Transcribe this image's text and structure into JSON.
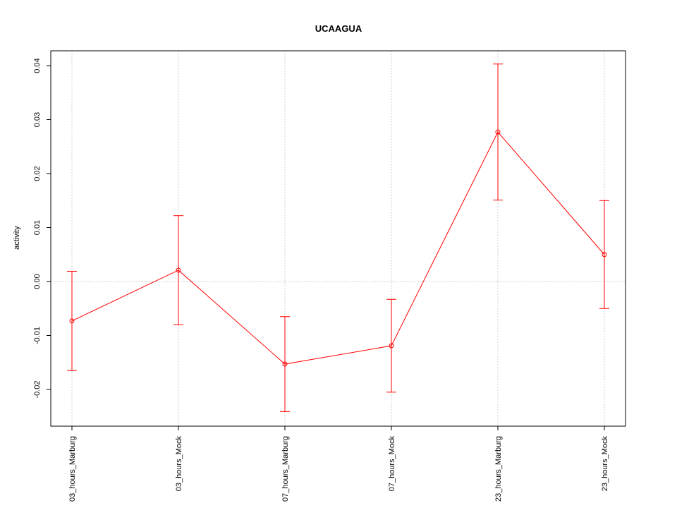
{
  "chart_data": {
    "type": "line",
    "title": "UCAAGUA",
    "y_label": "activity",
    "categories": [
      "03_hours_Marburg",
      "03_hours_Mock",
      "07_hours_Marburg",
      "07_hours_Mock",
      "23_hours_Marburg",
      "23_hours_Mock"
    ],
    "series": [
      {
        "name": "UCAAGUA",
        "color": "#ff0000",
        "values": [
          -0.0073,
          0.0021,
          -0.0153,
          -0.0119,
          0.0277,
          0.005
        ],
        "errors": [
          0.0092,
          0.0101,
          0.0088,
          0.0086,
          0.0126,
          0.01
        ]
      }
    ],
    "ylim": [
      -0.0268,
      0.04275
    ],
    "yticks": [
      -0.02,
      -0.01,
      {
        "value": 0,
        "label": "0.00"
      },
      0.01,
      0.02,
      0.03,
      0.04
    ],
    "reference_line": 0,
    "grid": true
  }
}
